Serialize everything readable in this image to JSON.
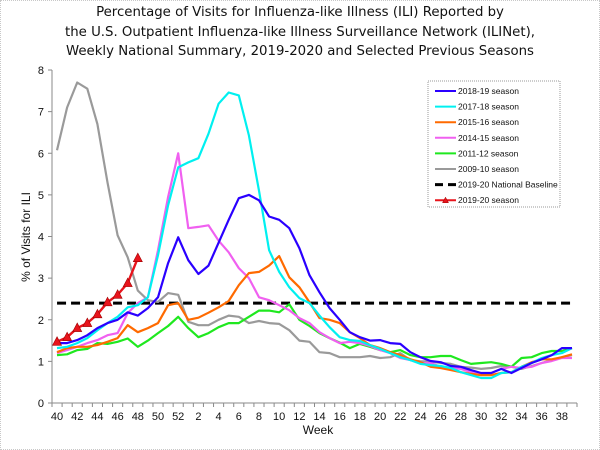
{
  "chart_data": {
    "type": "line",
    "title": [
      "Percentage of Visits for Influenza-like Illness (ILI) Reported by",
      "the U.S. Outpatient Influenza-like Illness Surveillance Network (ILINet),",
      "Weekly National Summary, 2019-2020 and Selected Previous Seasons"
    ],
    "xlabel": "Week",
    "ylabel": "% of Visits for ILI",
    "ylim": [
      0,
      8
    ],
    "yticks": [
      0,
      1,
      2,
      3,
      4,
      5,
      6,
      7,
      8
    ],
    "grid": false,
    "legend_position": "top-right",
    "x": [
      40,
      41,
      42,
      43,
      44,
      45,
      46,
      47,
      48,
      49,
      50,
      51,
      52,
      1,
      2,
      3,
      4,
      5,
      6,
      7,
      8,
      9,
      10,
      11,
      12,
      13,
      14,
      15,
      16,
      17,
      18,
      19,
      20,
      21,
      22,
      23,
      24,
      25,
      26,
      27,
      28,
      29,
      30,
      31,
      32,
      33,
      34,
      35,
      36,
      37,
      38,
      39
    ],
    "xtick_labels": [
      "40",
      "42",
      "44",
      "46",
      "48",
      "50",
      "52",
      "2",
      "4",
      "6",
      "8",
      "10",
      "12",
      "14",
      "16",
      "18",
      "20",
      "22",
      "24",
      "26",
      "28",
      "30",
      "32",
      "34",
      "36",
      "38"
    ],
    "series": [
      {
        "name": "2018-19 season",
        "color": "#2a00ff",
        "style": "solid",
        "marker": "none",
        "values": [
          1.44,
          1.44,
          1.51,
          1.63,
          1.8,
          1.92,
          2.0,
          2.18,
          2.1,
          2.28,
          2.54,
          3.36,
          3.98,
          3.43,
          3.1,
          3.3,
          3.85,
          4.4,
          4.92,
          5.0,
          4.87,
          4.48,
          4.4,
          4.2,
          3.72,
          3.07,
          2.66,
          2.28,
          2.0,
          1.7,
          1.58,
          1.5,
          1.51,
          1.44,
          1.42,
          1.22,
          1.1,
          1.01,
          0.98,
          0.89,
          0.87,
          0.79,
          0.72,
          0.72,
          0.82,
          0.72,
          0.84,
          0.96,
          1.05,
          1.15,
          1.32,
          1.32
        ]
      },
      {
        "name": "2017-18 season",
        "color": "#00f0f0",
        "style": "solid",
        "marker": "none",
        "values": [
          1.32,
          1.35,
          1.44,
          1.56,
          1.75,
          1.92,
          2.07,
          2.3,
          2.35,
          2.54,
          3.55,
          4.75,
          5.66,
          5.78,
          5.88,
          6.47,
          7.19,
          7.46,
          7.39,
          6.43,
          5.1,
          3.67,
          3.15,
          2.78,
          2.52,
          2.4,
          2.1,
          1.82,
          1.58,
          1.51,
          1.49,
          1.39,
          1.3,
          1.2,
          1.1,
          1.03,
          0.94,
          0.91,
          0.89,
          0.84,
          0.74,
          0.67,
          0.6,
          0.6,
          0.72,
          0.74,
          0.87,
          0.96,
          1.08,
          1.15,
          1.2,
          1.32
        ]
      },
      {
        "name": "2015-16 season",
        "color": "#ff6a00",
        "style": "solid",
        "marker": "none",
        "values": [
          1.22,
          1.32,
          1.35,
          1.35,
          1.39,
          1.47,
          1.56,
          1.87,
          1.7,
          1.8,
          1.92,
          2.35,
          2.4,
          2.0,
          2.05,
          2.17,
          2.3,
          2.45,
          2.83,
          3.12,
          3.15,
          3.3,
          3.53,
          3.02,
          2.78,
          2.42,
          2.04,
          2.0,
          1.92,
          1.7,
          1.56,
          1.39,
          1.32,
          1.22,
          1.15,
          1.05,
          0.98,
          0.87,
          0.84,
          0.79,
          0.74,
          0.7,
          0.67,
          0.67,
          0.72,
          0.74,
          0.87,
          0.98,
          1.05,
          1.05,
          1.1,
          1.17
        ]
      },
      {
        "name": "2014-15 season",
        "color": "#f060f0",
        "style": "solid",
        "marker": "none",
        "values": [
          1.2,
          1.27,
          1.35,
          1.44,
          1.51,
          1.63,
          1.68,
          2.16,
          2.4,
          2.54,
          3.67,
          4.95,
          6.0,
          4.2,
          4.23,
          4.27,
          3.9,
          3.62,
          3.24,
          3.0,
          2.54,
          2.47,
          2.35,
          2.23,
          2.04,
          1.92,
          1.7,
          1.56,
          1.44,
          1.47,
          1.44,
          1.37,
          1.27,
          1.2,
          1.08,
          1.03,
          0.96,
          0.96,
          0.87,
          0.85,
          0.82,
          0.74,
          0.67,
          0.72,
          0.82,
          0.87,
          0.84,
          0.87,
          0.96,
          1.01,
          1.08,
          1.08
        ]
      },
      {
        "name": "2011-12 season",
        "color": "#1fe81f",
        "style": "solid",
        "marker": "none",
        "values": [
          1.15,
          1.17,
          1.27,
          1.3,
          1.44,
          1.42,
          1.47,
          1.55,
          1.35,
          1.5,
          1.68,
          1.85,
          2.07,
          1.8,
          1.58,
          1.68,
          1.82,
          1.92,
          1.92,
          2.07,
          2.22,
          2.22,
          2.18,
          2.37,
          2.0,
          1.85,
          1.68,
          1.56,
          1.45,
          1.32,
          1.42,
          1.35,
          1.27,
          1.22,
          1.27,
          1.15,
          1.1,
          1.1,
          1.13,
          1.13,
          1.03,
          0.94,
          0.96,
          0.98,
          0.94,
          0.87,
          1.08,
          1.1,
          1.2,
          1.25,
          1.25,
          1.32
        ]
      },
      {
        "name": "2009-10 season",
        "color": "#9a9a9a",
        "style": "solid",
        "marker": "none",
        "values": [
          6.07,
          7.1,
          7.7,
          7.55,
          6.7,
          5.3,
          4.03,
          3.5,
          2.7,
          2.47,
          2.43,
          2.64,
          2.6,
          1.95,
          1.87,
          1.87,
          2.0,
          2.1,
          2.07,
          1.92,
          1.97,
          1.92,
          1.9,
          1.75,
          1.5,
          1.47,
          1.22,
          1.2,
          1.1,
          1.1,
          1.1,
          1.13,
          1.08,
          1.1,
          1.2,
          1.03,
          1.0,
          1.0,
          0.96,
          0.94,
          0.87,
          0.85,
          0.82,
          0.84,
          0.89,
          0.87,
          0.82,
          0.89,
          0.96,
          1.03,
          1.1,
          1.15
        ]
      },
      {
        "name": "2019-20 National Baseline",
        "color": "#000000",
        "style": "dashed",
        "marker": "none",
        "constant": 2.4
      },
      {
        "name": "2019-20 season",
        "color": "#e8141c",
        "style": "solid",
        "marker": "triangle",
        "values": [
          1.47,
          1.58,
          1.8,
          1.92,
          2.13,
          2.42,
          2.6,
          2.88,
          3.48
        ]
      }
    ]
  }
}
